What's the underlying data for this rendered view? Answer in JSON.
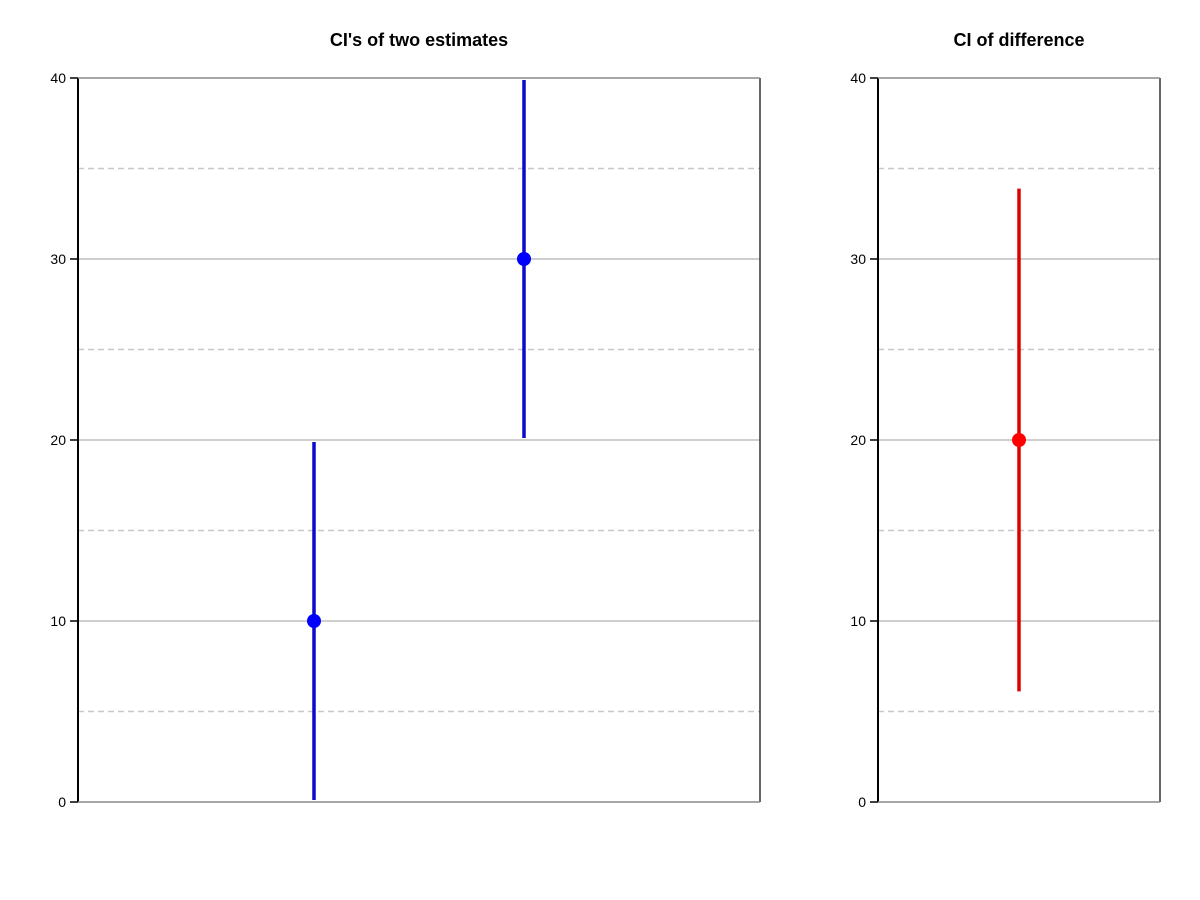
{
  "chart_data": [
    {
      "type": "errorbar",
      "title": "CI's of two estimates",
      "xlabel": "",
      "ylabel": "",
      "ylim": [
        0,
        40
      ],
      "yticks": [
        0,
        10,
        20,
        30,
        40
      ],
      "grid": {
        "major": [
          10,
          20,
          30
        ],
        "minor_dashed": [
          5,
          15,
          25,
          35
        ]
      },
      "color": "#0000ff",
      "points": [
        {
          "estimate": 10,
          "lower": 0,
          "upper": 20
        },
        {
          "estimate": 30,
          "lower": 20,
          "upper": 40
        }
      ]
    },
    {
      "type": "errorbar",
      "title": "CI of difference",
      "xlabel": "",
      "ylabel": "",
      "ylim": [
        0,
        40
      ],
      "yticks": [
        0,
        10,
        20,
        30,
        40
      ],
      "grid": {
        "major": [
          10,
          20,
          30
        ],
        "minor_dashed": [
          5,
          15,
          25,
          35
        ]
      },
      "color": "#ff0000",
      "points": [
        {
          "estimate": 20,
          "lower": 6,
          "upper": 34
        }
      ]
    }
  ]
}
